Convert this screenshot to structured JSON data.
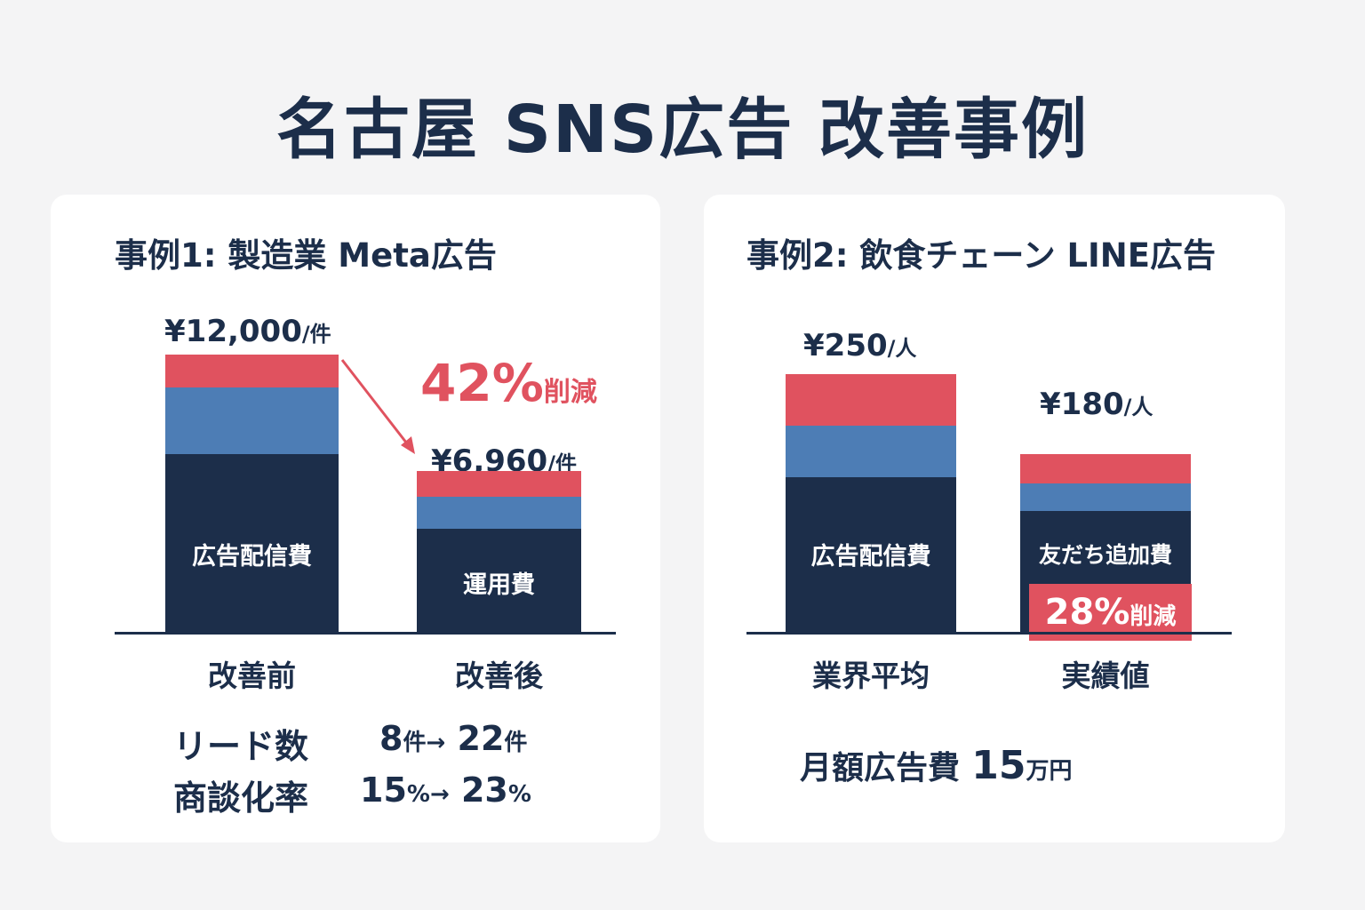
{
  "title": "名古屋 SNS広告 改善事例",
  "colors": {
    "red": "#e0525f",
    "blue": "#4d7db5",
    "navy": "#1c2e4a"
  },
  "chart_data": [
    {
      "type": "bar",
      "stacked": true,
      "title": "事例1: 製造業 Meta広告",
      "categories": [
        "改善前",
        "改善後"
      ],
      "value_labels": [
        {
          "value": "¥12,000",
          "unit": "/件"
        },
        {
          "value": "¥6,960",
          "unit": "/件"
        }
      ],
      "values": [
        12000,
        6960
      ],
      "segment_fractions": [
        [
          0.64,
          0.24,
          0.12
        ],
        [
          0.64,
          0.2,
          0.16
        ]
      ],
      "segment_labels": [
        "広告配信費",
        "運用費"
      ],
      "annotation": {
        "value": "42%",
        "text": "削減"
      },
      "metrics": [
        {
          "label": "リード数",
          "before": "8",
          "before_unit": "件",
          "arrow": "→",
          "after": "22",
          "after_unit": "件"
        },
        {
          "label": "商談化率",
          "before": "15",
          "before_unit": "%",
          "arrow": "→",
          "after": "23",
          "after_unit": "%"
        }
      ]
    },
    {
      "type": "bar",
      "stacked": true,
      "title": "事例2: 飲食チェーン LINE広告",
      "categories": [
        "業界平均",
        "実績値"
      ],
      "value_labels": [
        {
          "value": "¥250",
          "unit": "/人"
        },
        {
          "value": "¥180",
          "unit": "/人"
        }
      ],
      "values": [
        250,
        180
      ],
      "segment_fractions": [
        [
          0.6,
          0.2,
          0.2
        ],
        [
          0.65,
          0.15,
          0.16
        ]
      ],
      "segment_labels": [
        "広告配信費",
        "友だち追加費"
      ],
      "annotation": {
        "value": "28%",
        "text": "削減"
      },
      "footer": {
        "label": "月額広告費",
        "value": "15",
        "unit": "万円"
      }
    }
  ]
}
